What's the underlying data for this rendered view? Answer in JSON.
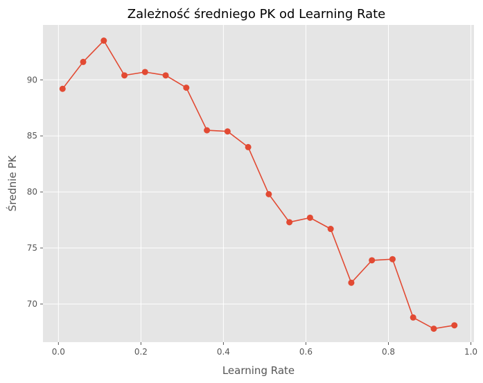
{
  "chart_data": {
    "type": "line",
    "title": "Zależność średniego PK od Learning Rate",
    "xlabel": "Learning Rate",
    "ylabel": "Średnie PK",
    "xlim": [
      -0.0375,
      1.0075
    ],
    "ylim": [
      66.6,
      94.9
    ],
    "xticks": [
      0.0,
      0.2,
      0.4,
      0.6,
      0.8,
      1.0
    ],
    "xtick_labels": [
      "0.0",
      "0.2",
      "0.4",
      "0.6",
      "0.8",
      "1.0"
    ],
    "yticks": [
      70,
      75,
      80,
      85,
      90
    ],
    "ytick_labels": [
      "70",
      "75",
      "80",
      "85",
      "90"
    ],
    "grid": true,
    "series": [
      {
        "x": [
          0.01,
          0.06,
          0.11,
          0.16,
          0.21,
          0.26,
          0.31,
          0.36,
          0.41,
          0.46,
          0.51,
          0.56,
          0.61,
          0.66,
          0.71,
          0.76,
          0.81,
          0.86,
          0.91,
          0.96
        ],
        "y": [
          89.2,
          91.6,
          93.5,
          90.4,
          90.7,
          90.4,
          89.3,
          85.5,
          85.4,
          84.0,
          79.8,
          77.3,
          77.7,
          76.7,
          71.9,
          73.9,
          74.0,
          68.8,
          67.8,
          68.1
        ],
        "color": "#E24A33"
      }
    ]
  },
  "style": {
    "plot_background": "#E5E5E5",
    "grid_color": "#FFFFFF",
    "text_color": "#555555"
  }
}
